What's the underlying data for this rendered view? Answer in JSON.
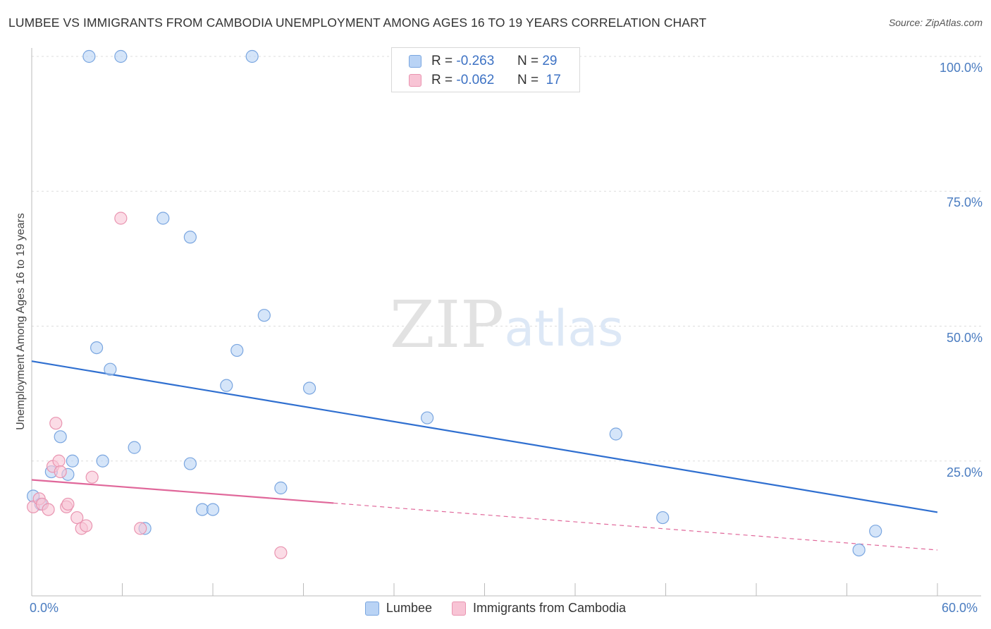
{
  "title": "LUMBEE VS IMMIGRANTS FROM CAMBODIA UNEMPLOYMENT AMONG AGES 16 TO 19 YEARS CORRELATION CHART",
  "source": "Source: ZipAtlas.com",
  "watermark": {
    "zip": "ZIP",
    "atlas": "atlas"
  },
  "colors": {
    "lumbee_fill": "#b9d3f5",
    "lumbee_stroke": "#7aa6e0",
    "lumbee_line": "#2f6fd0",
    "cambodia_fill": "#f8c4d5",
    "cambodia_stroke": "#e994b0",
    "cambodia_line": "#e0679a",
    "grid": "#dddddd",
    "tick_label": "#4a7cc0"
  },
  "legend_top": {
    "rows": [
      {
        "r_label": "R =",
        "r_value": "-0.263",
        "n_label": "N =",
        "n_value": "29"
      },
      {
        "r_label": "R =",
        "r_value": "-0.062",
        "n_label": "N =",
        "n_value": "17"
      }
    ]
  },
  "chart_data": {
    "type": "scatter",
    "title": "LUMBEE VS IMMIGRANTS FROM CAMBODIA UNEMPLOYMENT AMONG AGES 16 TO 19 YEARS CORRELATION CHART",
    "xlabel": "",
    "ylabel": "Unemployment Among Ages 16 to 19 years",
    "xlim": [
      0,
      60
    ],
    "ylim": [
      0,
      100
    ],
    "x_tick_labels": [
      "0.0%",
      "60.0%"
    ],
    "y_ticks": [
      25,
      50,
      75,
      100
    ],
    "y_tick_labels": [
      "25.0%",
      "50.0%",
      "75.0%",
      "100.0%"
    ],
    "grid": true,
    "legend_position": "bottom",
    "series": [
      {
        "name": "Lumbee",
        "points": [
          [
            0.1,
            18.5
          ],
          [
            0.6,
            17
          ],
          [
            1.3,
            23
          ],
          [
            1.9,
            29.5
          ],
          [
            2.4,
            22.5
          ],
          [
            2.7,
            25
          ],
          [
            3.8,
            100
          ],
          [
            4.3,
            46
          ],
          [
            4.7,
            25
          ],
          [
            5.2,
            42
          ],
          [
            5.9,
            100
          ],
          [
            6.8,
            27.5
          ],
          [
            7.5,
            12.5
          ],
          [
            8.7,
            70
          ],
          [
            10.5,
            24.5
          ],
          [
            10.5,
            66.5
          ],
          [
            11.3,
            16
          ],
          [
            12.0,
            16
          ],
          [
            12.9,
            39
          ],
          [
            13.6,
            45.5
          ],
          [
            14.6,
            100
          ],
          [
            15.4,
            52
          ],
          [
            16.5,
            20
          ],
          [
            18.4,
            38.5
          ],
          [
            26.2,
            33
          ],
          [
            38.7,
            30
          ],
          [
            41.8,
            14.5
          ],
          [
            54.8,
            8.5
          ],
          [
            55.9,
            12
          ]
        ],
        "trend": {
          "x": [
            0,
            60
          ],
          "y": [
            43.5,
            15.5
          ]
        }
      },
      {
        "name": "Immigrants from Cambodia",
        "points": [
          [
            0.1,
            16.5
          ],
          [
            0.5,
            18
          ],
          [
            0.7,
            17
          ],
          [
            1.1,
            16
          ],
          [
            1.4,
            24
          ],
          [
            1.6,
            32
          ],
          [
            1.8,
            25
          ],
          [
            1.9,
            23
          ],
          [
            2.3,
            16.5
          ],
          [
            2.4,
            17
          ],
          [
            3.0,
            14.5
          ],
          [
            3.3,
            12.5
          ],
          [
            3.6,
            13
          ],
          [
            4.0,
            22
          ],
          [
            5.9,
            70
          ],
          [
            7.2,
            12.5
          ],
          [
            16.5,
            8
          ]
        ],
        "trend": {
          "x": [
            0,
            20
          ],
          "y": [
            21.5,
            17.2
          ]
        },
        "trend_dashed": {
          "x": [
            20,
            60
          ],
          "y": [
            17.2,
            8.5
          ]
        }
      }
    ]
  }
}
